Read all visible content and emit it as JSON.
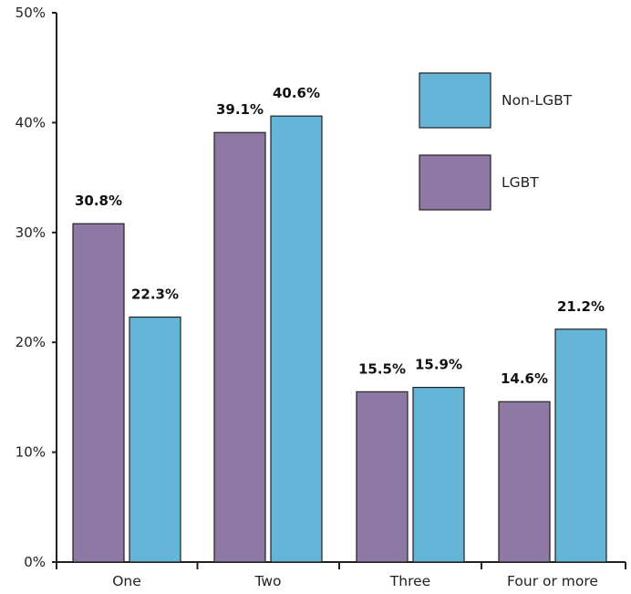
{
  "chart_data": {
    "type": "bar",
    "categories": [
      "One",
      "Two",
      "Three",
      "Four or more"
    ],
    "series": [
      {
        "name": "LGBT",
        "values": [
          30.8,
          39.1,
          15.5,
          14.6
        ],
        "labels": [
          "30.8%",
          "39.1%",
          "15.5%",
          "14.6%"
        ],
        "color": "#8d79a4"
      },
      {
        "name": "Non-LGBT",
        "values": [
          22.3,
          40.6,
          15.9,
          21.2
        ],
        "labels": [
          "22.3%",
          "40.6%",
          "15.9%",
          "21.2%"
        ],
        "color": "#65b5d9"
      }
    ],
    "ylim": [
      0,
      50
    ],
    "yticks": [
      0,
      10,
      20,
      30,
      40,
      50
    ],
    "ytick_labels": [
      "0%",
      "10%",
      "20%",
      "30%",
      "40%",
      "50%"
    ],
    "legend_order": [
      "Non-LGBT",
      "LGBT"
    ],
    "legend_position": "top-right",
    "grid": false
  }
}
